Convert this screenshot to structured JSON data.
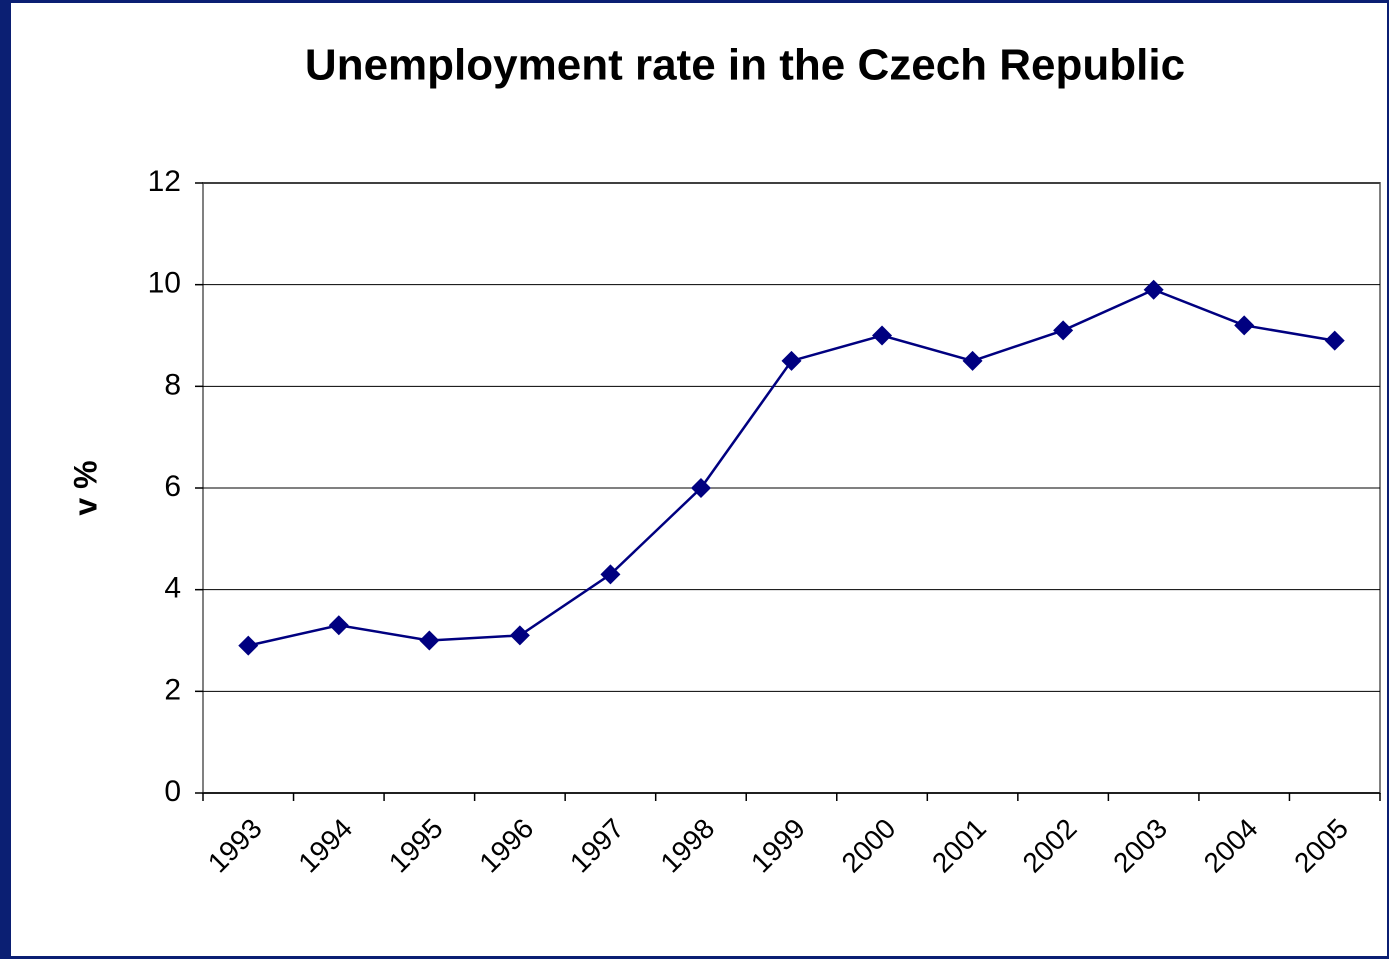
{
  "chart_data": {
    "type": "line",
    "title": "Unemployment rate in the Czech Republic",
    "y_label": "v %",
    "categories": [
      "1993",
      "1994",
      "1995",
      "1996",
      "1997",
      "1998",
      "1999",
      "2000",
      "2001",
      "2002",
      "2003",
      "2004",
      "2005"
    ],
    "series": [
      {
        "name": "Unemployment rate",
        "color": "#000080",
        "values": [
          2.9,
          3.3,
          3.0,
          3.1,
          4.3,
          6.0,
          8.5,
          9.0,
          8.5,
          9.1,
          9.9,
          9.2,
          8.9
        ]
      }
    ],
    "ylim": [
      0,
      12
    ],
    "yticks": [
      0,
      2,
      4,
      6,
      8,
      10,
      12
    ],
    "grid": true,
    "marker": "diamond"
  }
}
